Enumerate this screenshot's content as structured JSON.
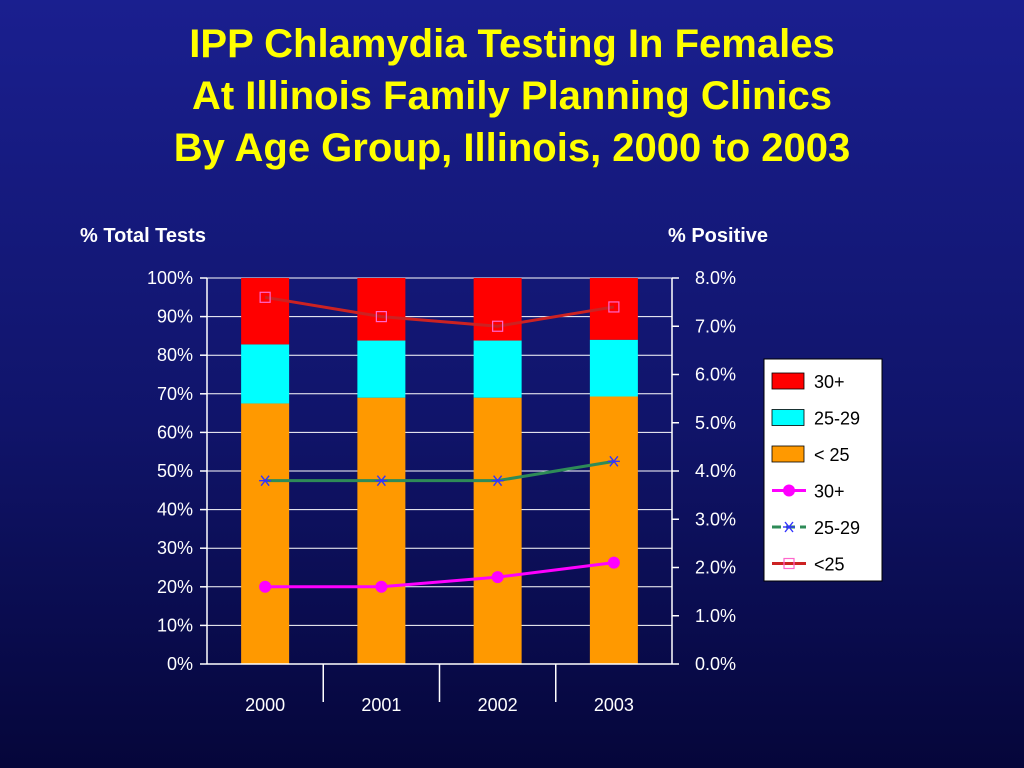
{
  "title": {
    "line1": "IPP Chlamydia Testing In Females",
    "line2": "At Illinois Family Planning Clinics",
    "line3": "By Age Group, Illinois, 2000 to 2003"
  },
  "colors": {
    "bar_30plus": "#ff0000",
    "bar_25_29": "#00ffff",
    "bar_under25": "#ff9900",
    "line_30plus": "#ff00ff",
    "line_25_29": "#2e8b57",
    "line_under25": "#cc2222",
    "axis": "#ffffff"
  },
  "chart_data": {
    "type": "bar",
    "categories": [
      "2000",
      "2001",
      "2002",
      "2003"
    ],
    "ylabel_left": "% Total Tests",
    "ylabel_right": "% Positive",
    "ylim_left": [
      0,
      100
    ],
    "ylim_right": [
      0,
      8
    ],
    "left_ticks": [
      "0%",
      "10%",
      "20%",
      "30%",
      "40%",
      "50%",
      "60%",
      "70%",
      "80%",
      "90%",
      "100%"
    ],
    "right_ticks": [
      "0.0%",
      "1.0%",
      "2.0%",
      "3.0%",
      "4.0%",
      "5.0%",
      "6.0%",
      "7.0%",
      "8.0%"
    ],
    "bar_series": [
      {
        "name": "< 25",
        "values": [
          67.5,
          69,
          69,
          69.3
        ]
      },
      {
        "name": "25-29",
        "values": [
          15.3,
          14.8,
          14.8,
          14.7
        ]
      },
      {
        "name": "30+",
        "values": [
          17.2,
          16.2,
          16.2,
          16.0
        ]
      }
    ],
    "line_series": [
      {
        "name": "30+",
        "values": [
          1.6,
          1.6,
          1.8,
          2.1
        ],
        "marker": "circle"
      },
      {
        "name": "25-29",
        "values": [
          3.8,
          3.8,
          3.8,
          4.2
        ],
        "marker": "asterisk"
      },
      {
        "name": "<25",
        "values": [
          7.6,
          7.2,
          7.0,
          7.4
        ],
        "marker": "square"
      }
    ],
    "legend": [
      "30+",
      "25-29",
      "< 25",
      "30+",
      "25-29",
      "<25"
    ],
    "legend_position": "right"
  }
}
